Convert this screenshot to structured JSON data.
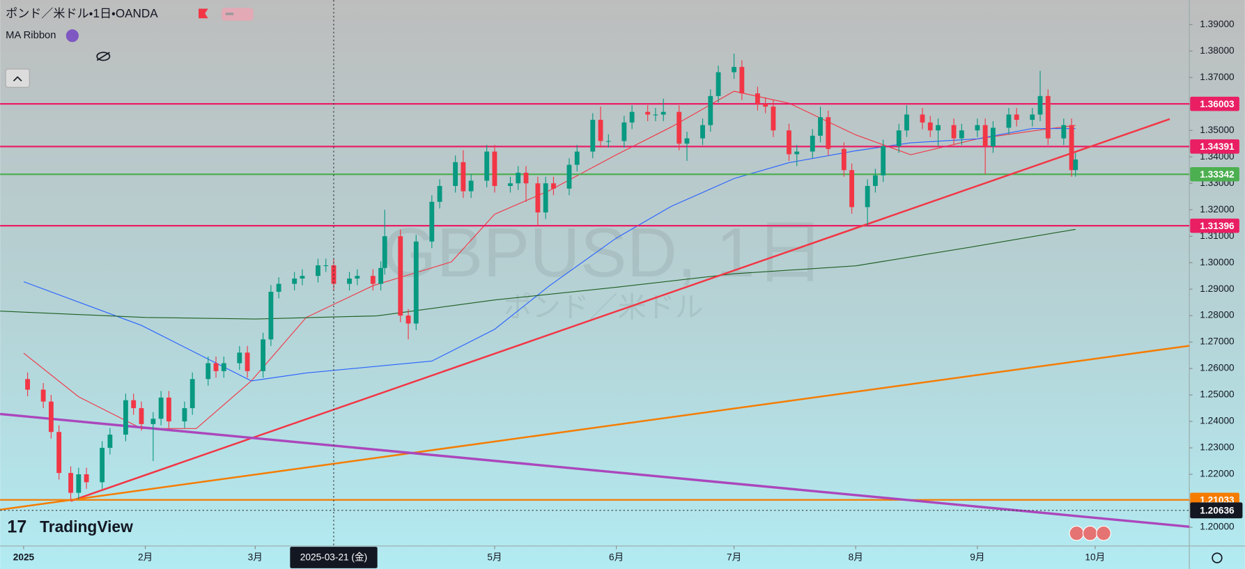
{
  "header": {
    "symbol": "ポンド／米ドル・1日・OANDA",
    "indicator": "MA Ribbon"
  },
  "watermark": {
    "title": "GBPUSD, 1日",
    "subtitle": "ポンド／米ドル"
  },
  "logo": "TradingView",
  "chart_data": {
    "type": "candlestick",
    "xlim": [
      "2024-12-26",
      "2025-10-25"
    ],
    "ylim": [
      1.1929,
      1.3993
    ],
    "xticks": [
      {
        "value": "2025-01-01",
        "label": "2025"
      },
      {
        "value": "2025-02-01",
        "label": "2月"
      },
      {
        "value": "2025-03-01",
        "label": "3月"
      },
      {
        "value": "2025-05-01",
        "label": "5月"
      },
      {
        "value": "2025-06-01",
        "label": "6月"
      },
      {
        "value": "2025-07-01",
        "label": "7月"
      },
      {
        "value": "2025-08-01",
        "label": "8月"
      },
      {
        "value": "2025-09-01",
        "label": "9月"
      },
      {
        "value": "2025-10-01",
        "label": "10月"
      }
    ],
    "yticks": [
      {
        "value": 1.39,
        "label": "1.39000"
      },
      {
        "value": 1.38,
        "label": "1.38000"
      },
      {
        "value": 1.37,
        "label": "1.37000"
      },
      {
        "value": 1.36,
        "label": "1.36000"
      },
      {
        "value": 1.35,
        "label": "1.35000"
      },
      {
        "value": 1.34,
        "label": "1.34000"
      },
      {
        "value": 1.33,
        "label": "1.33000"
      },
      {
        "value": 1.32,
        "label": "1.32000"
      },
      {
        "value": 1.31,
        "label": "1.31000"
      },
      {
        "value": 1.3,
        "label": "1.30000"
      },
      {
        "value": 1.29,
        "label": "1.29000"
      },
      {
        "value": 1.28,
        "label": "1.28000"
      },
      {
        "value": 1.27,
        "label": "1.27000"
      },
      {
        "value": 1.26,
        "label": "1.26000"
      },
      {
        "value": 1.25,
        "label": "1.25000"
      },
      {
        "value": 1.24,
        "label": "1.24000"
      },
      {
        "value": 1.23,
        "label": "1.23000"
      },
      {
        "value": 1.22,
        "label": "1.22000"
      },
      {
        "value": 1.21,
        "label": "1.21000"
      },
      {
        "value": 1.2,
        "label": "1.20000"
      }
    ],
    "up_color": "#089981",
    "down_color": "#f23645",
    "x": [
      "2025-01-02",
      "2025-01-06",
      "2025-01-08",
      "2025-01-10",
      "2025-01-13",
      "2025-01-15",
      "2025-01-17",
      "2025-01-21",
      "2025-01-23",
      "2025-01-27",
      "2025-01-29",
      "2025-01-31",
      "2025-02-03",
      "2025-02-05",
      "2025-02-07",
      "2025-02-11",
      "2025-02-13",
      "2025-02-17",
      "2025-02-19",
      "2025-02-21",
      "2025-02-25",
      "2025-02-27",
      "2025-03-03",
      "2025-03-05",
      "2025-03-07",
      "2025-03-11",
      "2025-03-13",
      "2025-03-17",
      "2025-03-19",
      "2025-03-21",
      "2025-03-25",
      "2025-03-27",
      "2025-03-31",
      "2025-04-02",
      "2025-04-03",
      "2025-04-07",
      "2025-04-09",
      "2025-04-11",
      "2025-04-15",
      "2025-04-17",
      "2025-04-21",
      "2025-04-23",
      "2025-04-25",
      "2025-04-29",
      "2025-05-01",
      "2025-05-05",
      "2025-05-07",
      "2025-05-09",
      "2025-05-12",
      "2025-05-14",
      "2025-05-16",
      "2025-05-20",
      "2025-05-22",
      "2025-05-26",
      "2025-05-28",
      "2025-05-30",
      "2025-06-03",
      "2025-06-05",
      "2025-06-09",
      "2025-06-11",
      "2025-06-13",
      "2025-06-17",
      "2025-06-19",
      "2025-06-23",
      "2025-06-25",
      "2025-06-27",
      "2025-07-01",
      "2025-07-03",
      "2025-07-07",
      "2025-07-09",
      "2025-07-11",
      "2025-07-15",
      "2025-07-17",
      "2025-07-21",
      "2025-07-23",
      "2025-07-25",
      "2025-07-29",
      "2025-07-31",
      "2025-08-04",
      "2025-08-06",
      "2025-08-08",
      "2025-08-12",
      "2025-08-14",
      "2025-08-18",
      "2025-08-20",
      "2025-08-22",
      "2025-08-26",
      "2025-08-28",
      "2025-09-01",
      "2025-09-03",
      "2025-09-05",
      "2025-09-09",
      "2025-09-11",
      "2025-09-15",
      "2025-09-17",
      "2025-09-19",
      "2025-09-23",
      "2025-09-25",
      "2025-09-26"
    ],
    "open": [
      1.256,
      1.252,
      1.2475,
      1.236,
      1.2205,
      1.213,
      1.22,
      1.217,
      1.23,
      1.235,
      1.248,
      1.245,
      1.239,
      1.241,
      1.249,
      1.24,
      1.245,
      1.256,
      1.262,
      1.259,
      1.262,
      1.266,
      1.259,
      1.271,
      1.289,
      1.292,
      1.294,
      1.295,
      1.299,
      1.299,
      1.292,
      1.294,
      1.295,
      1.292,
      1.298,
      1.31,
      1.28,
      1.277,
      1.308,
      1.323,
      1.329,
      1.338,
      1.327,
      1.331,
      1.342,
      1.329,
      1.33,
      1.334,
      1.33,
      1.319,
      1.33,
      1.328,
      1.337,
      1.342,
      1.354,
      1.346,
      1.346,
      1.353,
      1.357,
      1.356,
      1.356,
      1.357,
      1.345,
      1.347,
      1.352,
      1.363,
      1.372,
      1.374,
      1.364,
      1.36,
      1.359,
      1.35,
      1.341,
      1.342,
      1.348,
      1.355,
      1.343,
      1.335,
      1.321,
      1.329,
      1.333,
      1.344,
      1.35,
      1.356,
      1.353,
      1.35,
      1.352,
      1.347,
      1.35,
      1.352,
      1.344,
      1.351,
      1.356,
      1.354,
      1.356,
      1.363,
      1.347,
      1.352,
      1.335
    ],
    "high": [
      1.2585,
      1.2545,
      1.25,
      1.2385,
      1.223,
      1.2225,
      1.2225,
      1.2325,
      1.2375,
      1.2505,
      1.2505,
      1.2475,
      1.2435,
      1.2515,
      1.2515,
      1.2475,
      1.2585,
      1.2645,
      1.2645,
      1.2645,
      1.2685,
      1.2685,
      1.2735,
      1.2915,
      1.2945,
      1.2965,
      1.2975,
      1.3015,
      1.3015,
      1.3015,
      1.2965,
      1.2975,
      1.2975,
      1.3005,
      1.32,
      1.3125,
      1.2825,
      1.3105,
      1.3255,
      1.3315,
      1.3405,
      1.3425,
      1.3335,
      1.3445,
      1.3445,
      1.3325,
      1.3365,
      1.3365,
      1.3325,
      1.3325,
      1.3325,
      1.3395,
      1.3445,
      1.3565,
      1.359,
      1.3485,
      1.3555,
      1.3595,
      1.3595,
      1.3585,
      1.362,
      1.3595,
      1.3495,
      1.3545,
      1.3655,
      1.3745,
      1.379,
      1.3765,
      1.3665,
      1.3625,
      1.3615,
      1.3525,
      1.3445,
      1.3505,
      1.359,
      1.3575,
      1.3455,
      1.3375,
      1.3315,
      1.3355,
      1.3465,
      1.3525,
      1.3595,
      1.3585,
      1.3555,
      1.3545,
      1.3545,
      1.3525,
      1.3545,
      1.3545,
      1.3535,
      1.3585,
      1.3585,
      1.3585,
      1.3725,
      1.3655,
      1.3545,
      1.3545,
      1.3415
    ],
    "low": [
      1.2495,
      1.245,
      1.2335,
      1.218,
      1.21,
      1.2105,
      1.2145,
      1.2145,
      1.2275,
      1.2325,
      1.2425,
      1.2365,
      1.225,
      1.2385,
      1.2375,
      1.2375,
      1.2425,
      1.2535,
      1.2565,
      1.2565,
      1.2595,
      1.2565,
      1.2565,
      1.2685,
      1.2865,
      1.2895,
      1.2915,
      1.2925,
      1.2965,
      1.2895,
      1.2895,
      1.2915,
      1.2895,
      1.2895,
      1.2955,
      1.2775,
      1.271,
      1.2745,
      1.3055,
      1.3205,
      1.3265,
      1.3245,
      1.3245,
      1.3285,
      1.3265,
      1.3265,
      1.3275,
      1.323,
      1.314,
      1.3165,
      1.3255,
      1.3255,
      1.3345,
      1.3395,
      1.3435,
      1.3435,
      1.3435,
      1.3505,
      1.3535,
      1.3535,
      1.3535,
      1.3425,
      1.3385,
      1.3445,
      1.3495,
      1.3605,
      1.3695,
      1.3615,
      1.3575,
      1.3565,
      1.3475,
      1.3385,
      1.3365,
      1.3395,
      1.3455,
      1.3405,
      1.3325,
      1.3185,
      1.314,
      1.3265,
      1.3305,
      1.3415,
      1.3475,
      1.3505,
      1.3475,
      1.344,
      1.3445,
      1.3445,
      1.3475,
      1.3335,
      1.3415,
      1.3485,
      1.3515,
      1.3515,
      1.3535,
      1.3445,
      1.3445,
      1.3325,
      1.3325
    ],
    "close": [
      1.252,
      1.2475,
      1.236,
      1.2205,
      1.213,
      1.22,
      1.217,
      1.23,
      1.235,
      1.248,
      1.245,
      1.239,
      1.241,
      1.249,
      1.24,
      1.245,
      1.256,
      1.262,
      1.259,
      1.262,
      1.266,
      1.259,
      1.271,
      1.289,
      1.292,
      1.294,
      1.295,
      1.299,
      1.299,
      1.292,
      1.294,
      1.295,
      1.292,
      1.298,
      1.31,
      1.28,
      1.277,
      1.308,
      1.323,
      1.329,
      1.338,
      1.327,
      1.331,
      1.342,
      1.329,
      1.33,
      1.334,
      1.33,
      1.319,
      1.33,
      1.328,
      1.337,
      1.342,
      1.354,
      1.346,
      1.346,
      1.353,
      1.357,
      1.356,
      1.356,
      1.357,
      1.345,
      1.347,
      1.352,
      1.363,
      1.372,
      1.374,
      1.364,
      1.36,
      1.359,
      1.35,
      1.341,
      1.342,
      1.348,
      1.355,
      1.343,
      1.335,
      1.321,
      1.329,
      1.333,
      1.344,
      1.35,
      1.356,
      1.353,
      1.35,
      1.352,
      1.347,
      1.35,
      1.352,
      1.344,
      1.351,
      1.356,
      1.354,
      1.356,
      1.363,
      1.347,
      1.352,
      1.335,
      1.339
    ],
    "ma_lines": [
      {
        "color": "#f23645",
        "x": [
          "2025-01-01",
          "2025-01-15",
          "2025-01-31",
          "2025-02-14",
          "2025-02-28",
          "2025-03-14",
          "2025-03-31",
          "2025-04-10",
          "2025-04-20",
          "2025-05-01",
          "2025-05-15",
          "2025-06-01",
          "2025-06-15",
          "2025-07-01",
          "2025-07-15",
          "2025-08-01",
          "2025-08-15",
          "2025-09-01",
          "2025-09-15",
          "2025-09-26"
        ],
        "values": [
          1.2658,
          1.2493,
          1.2373,
          1.2373,
          1.2553,
          1.2793,
          1.2913,
          1.2958,
          1.3003,
          1.3183,
          1.3273,
          1.3408,
          1.3513,
          1.3648,
          1.3603,
          1.3483,
          1.3408,
          1.3468,
          1.3498,
          1.3519
        ]
      },
      {
        "color": "#2962ff",
        "x": [
          "2025-01-01",
          "2025-01-31",
          "2025-02-28",
          "2025-03-14",
          "2025-03-31",
          "2025-04-15",
          "2025-05-01",
          "2025-05-15",
          "2025-06-01",
          "2025-06-15",
          "2025-07-01",
          "2025-07-15",
          "2025-08-01",
          "2025-08-15",
          "2025-09-01",
          "2025-09-15",
          "2025-09-26"
        ],
        "values": [
          1.2928,
          1.2763,
          1.2553,
          1.2583,
          1.2607,
          1.2628,
          1.2748,
          1.2913,
          1.3093,
          1.3213,
          1.3318,
          1.3378,
          1.3423,
          1.3453,
          1.3468,
          1.3507,
          1.3507
        ]
      },
      {
        "color": "#1b5e20",
        "x": [
          "2024-12-26",
          "2025-02-01",
          "2025-03-01",
          "2025-04-01",
          "2025-05-01",
          "2025-06-01",
          "2025-07-01",
          "2025-08-01",
          "2025-09-01",
          "2025-09-26"
        ],
        "values": [
          1.2817,
          1.2793,
          1.2787,
          1.2799,
          1.2859,
          1.2907,
          1.2958,
          1.2988,
          1.3063,
          1.3126
        ]
      }
    ],
    "levels": [
      {
        "price": 1.36003,
        "color": "#e91e63"
      },
      {
        "price": 1.34391,
        "color": "#e91e63"
      },
      {
        "price": 1.33342,
        "color": "#4caf50"
      },
      {
        "price": 1.31396,
        "color": "#e91e63"
      },
      {
        "price": 1.21033,
        "color": "#f57c00"
      }
    ],
    "trendlines": [
      {
        "color": "#f23645",
        "x": [
          "2025-01-13",
          "2025-10-20"
        ],
        "values": [
          1.2099,
          1.3543
        ]
      },
      {
        "color": "#f57c00",
        "x": [
          "2024-12-26",
          "2025-10-25"
        ],
        "values": [
          1.2066,
          1.2686
        ]
      },
      {
        "color": "#ab47bc",
        "x": [
          "2024-12-26",
          "2025-10-25"
        ],
        "values": [
          1.2428,
          1.2002
        ]
      }
    ],
    "crosshair": {
      "x": {
        "value": "2025-03-21",
        "label": "2025-03-21 (金)"
      },
      "y": 1.20636
    }
  }
}
